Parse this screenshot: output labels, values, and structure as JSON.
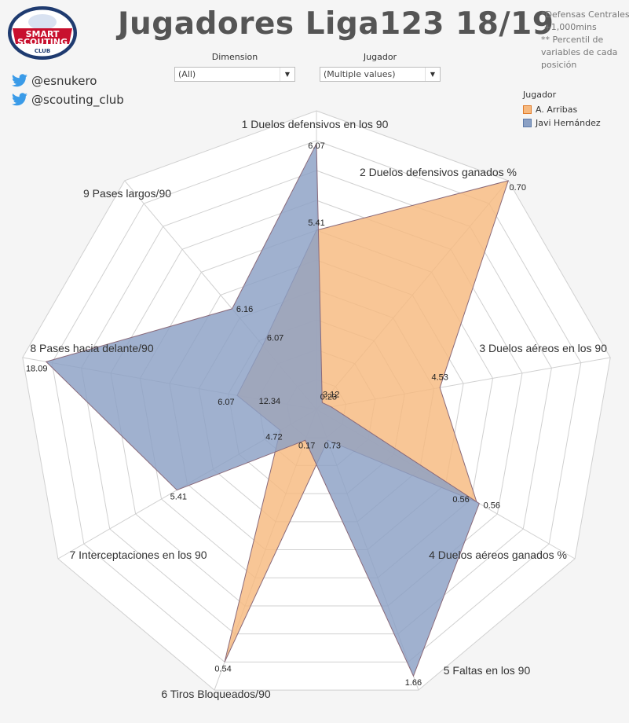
{
  "header": {
    "title": "Jugadores Liga123 18/19",
    "note": "*Defensas Centrales\n +1,000mins\n** Percentil de\nvariables de cada\nposición",
    "logo": {
      "line1": "SMART",
      "line2": "SCOUTING",
      "line3": "CLUB"
    }
  },
  "social": {
    "handle1": "@esnukero",
    "handle2": "@scouting_club",
    "icon": "twitter-bird-icon"
  },
  "filters": {
    "dimension": {
      "label": "Dimension",
      "value": "(All)"
    },
    "jugador": {
      "label": "Jugador",
      "value": "(Multiple values)"
    }
  },
  "legend": {
    "title": "Jugador",
    "items": [
      {
        "name": "A. Arribas",
        "color": "#f6b97f",
        "border": "#e07b2a"
      },
      {
        "name": "Javi Hernández",
        "color": "#8ba0c4",
        "border": "#5d7aa8"
      }
    ]
  },
  "chart_data": {
    "type": "radar",
    "axes": [
      "1 Duelos defensivos en los 90",
      "2 Duelos defensivos ganados %",
      "3 Duelos aéreos en los 90",
      "4 Duelos aéreos ganados %",
      "5 Faltas en los 90",
      "6 Tiros Bloqueados/90",
      "7 Interceptaciones en los 90",
      "8 Pases hacia delante/90",
      "9 Pases largos/90"
    ],
    "rlim": [
      0,
      1
    ],
    "rings": 10,
    "series": [
      {
        "name": "A. Arribas",
        "color": "#f6b97f",
        "stroke": "#8a6a7a",
        "percentiles": [
          0.6,
          1.0,
          0.42,
          0.62,
          0.11,
          0.9,
          0.14,
          0.27,
          0.28
        ],
        "labels": [
          "5.41",
          "0.70",
          "4.53",
          "0.56",
          "0.73",
          "0.54",
          "4.72",
          "6.07",
          "6.07"
        ]
      },
      {
        "name": "Javi Hernández",
        "color": "#8ba0c4",
        "stroke": "#8a6a7a",
        "percentiles": [
          0.89,
          0.03,
          0.05,
          0.63,
          0.95,
          0.11,
          0.54,
          0.92,
          0.44
        ],
        "labels": [
          "6.07",
          "0.23",
          "3.12",
          "0.56",
          "1.66",
          "0.17",
          "5.41",
          "18.09",
          "6.16"
        ]
      }
    ],
    "extra_labels": [
      {
        "text": "12.34",
        "axis": 7,
        "r": 0.17
      }
    ]
  }
}
